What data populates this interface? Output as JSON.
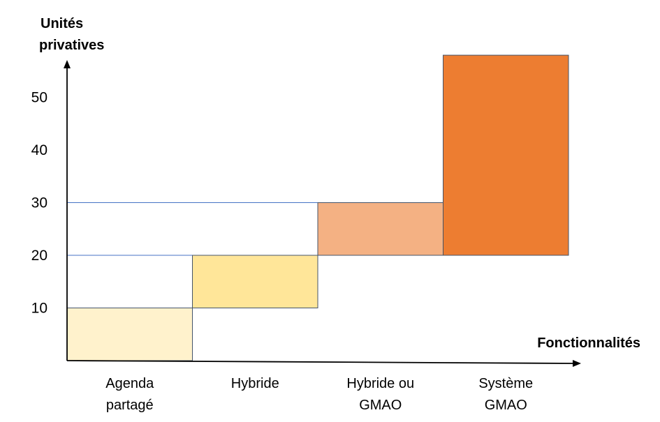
{
  "chart_data": {
    "type": "bar",
    "ylabel_lines": [
      "Unités",
      "privatives"
    ],
    "xlabel": "Fonctionnalités",
    "yticks": [
      10,
      20,
      30,
      40,
      50
    ],
    "categories": [
      {
        "lines": [
          "Agenda",
          "partagé"
        ]
      },
      {
        "lines": [
          "Hybride"
        ]
      },
      {
        "lines": [
          "Hybride ou",
          "GMAO"
        ]
      },
      {
        "lines": [
          "Système",
          "GMAO"
        ]
      }
    ],
    "bars": [
      {
        "category": "Agenda partagé",
        "from": 0,
        "to": 10,
        "color": "#FFF2CC"
      },
      {
        "category": "Hybride",
        "from": 10,
        "to": 20,
        "color": "#FFE699"
      },
      {
        "category": "Hybride ou GMAO",
        "from": 20,
        "to": 30,
        "color": "#F4B183"
      },
      {
        "category": "Système GMAO",
        "from": 20,
        "to": 58,
        "color": "#ED7D31"
      }
    ],
    "reference_lines": [
      20,
      30
    ],
    "grid": false,
    "legend": "none"
  }
}
